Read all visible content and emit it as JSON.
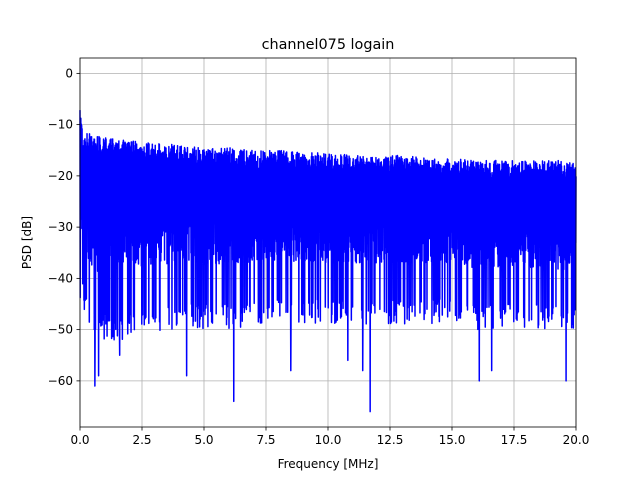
{
  "chart_data": {
    "type": "line",
    "title": "channel075 logain",
    "xlabel": "Frequency [MHz]",
    "ylabel": "PSD [dB]",
    "xlim": [
      0,
      20
    ],
    "ylim": [
      -69,
      3
    ],
    "grid": true,
    "xticks": [
      0,
      2.5,
      5,
      7.5,
      10,
      12.5,
      15,
      17.5,
      20
    ],
    "xtick_labels": [
      "0.0",
      "2.5",
      "5.0",
      "7.5",
      "10.0",
      "12.5",
      "15.0",
      "17.5",
      "20.0"
    ],
    "yticks": [
      0,
      -10,
      -20,
      -30,
      -40,
      -50,
      -60
    ],
    "ytick_labels": [
      "0",
      "−10",
      "−20",
      "−30",
      "−40",
      "−50",
      "−60"
    ],
    "series": [
      {
        "color": "#0000ff",
        "envelope_x": [
          0,
          0.1,
          0.5,
          1,
          2,
          3,
          4,
          5,
          6,
          7,
          8,
          9,
          10,
          11,
          12,
          13,
          14,
          15,
          16,
          17,
          18,
          19,
          20
        ],
        "upper_db": [
          -5,
          -11,
          -12,
          -12.5,
          -13,
          -13.5,
          -14,
          -14.5,
          -14.5,
          -15,
          -15,
          -15.5,
          -15.5,
          -16,
          -16,
          -16,
          -16.5,
          -16.5,
          -17,
          -17,
          -17,
          -17,
          -17
        ],
        "lower_db": [
          -44,
          -40,
          -48,
          -47,
          -47,
          -46,
          -45,
          -45,
          -45,
          -44,
          -44,
          -44,
          -44,
          -44,
          -44,
          -44,
          -44,
          -44,
          -45,
          -45,
          -45,
          -45,
          -46
        ],
        "dips": [
          {
            "x": 0.6,
            "y": -61
          },
          {
            "x": 0.75,
            "y": -59
          },
          {
            "x": 1.6,
            "y": -55
          },
          {
            "x": 4.3,
            "y": -59
          },
          {
            "x": 6.2,
            "y": -64
          },
          {
            "x": 8.5,
            "y": -58
          },
          {
            "x": 10.8,
            "y": -56
          },
          {
            "x": 11.4,
            "y": -58
          },
          {
            "x": 11.7,
            "y": -66
          },
          {
            "x": 16.1,
            "y": -60
          },
          {
            "x": 16.6,
            "y": -58
          },
          {
            "x": 19.6,
            "y": -60
          }
        ]
      }
    ]
  }
}
